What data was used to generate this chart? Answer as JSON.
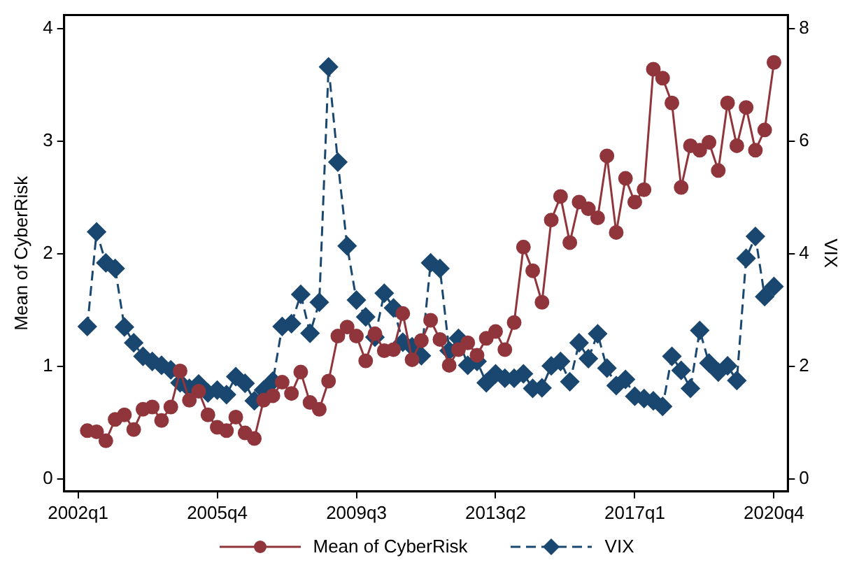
{
  "chart_data": {
    "type": "line",
    "ylabel": "Mean of CyberRisk",
    "y2label": "VIX",
    "categories": [
      "2002q1",
      null,
      null,
      null,
      null,
      null,
      null,
      null,
      null,
      null,
      null,
      null,
      null,
      null,
      null,
      "2005q4",
      null,
      null,
      null,
      null,
      null,
      null,
      null,
      null,
      null,
      null,
      null,
      null,
      null,
      null,
      "2009q3",
      null,
      null,
      null,
      null,
      null,
      null,
      null,
      null,
      null,
      null,
      null,
      null,
      null,
      null,
      "2013q2",
      null,
      null,
      null,
      null,
      null,
      null,
      null,
      null,
      null,
      null,
      null,
      null,
      null,
      null,
      "2017q1",
      null,
      null,
      null,
      null,
      null,
      null,
      null,
      null,
      null,
      null,
      null,
      null,
      null,
      null,
      "2020q4"
    ],
    "series": [
      {
        "name": "Mean of CyberRisk",
        "color": "#90353b",
        "marker": "circle",
        "line_style": "solid",
        "values": [
          null,
          0.43,
          0.42,
          0.34,
          0.53,
          0.57,
          0.44,
          0.62,
          0.64,
          0.52,
          0.64,
          0.96,
          0.7,
          0.78,
          0.57,
          0.46,
          0.43,
          0.55,
          0.41,
          0.36,
          0.7,
          0.74,
          0.86,
          0.76,
          0.95,
          0.68,
          0.62,
          0.87,
          1.27,
          1.35,
          1.27,
          1.05,
          1.29,
          1.14,
          1.15,
          1.47,
          1.06,
          1.23,
          1.41,
          1.24,
          1.01,
          1.15,
          1.21,
          1.1,
          1.25,
          1.31,
          1.15,
          1.39,
          2.06,
          1.85,
          1.57,
          2.3,
          2.51,
          2.1,
          2.46,
          2.4,
          2.32,
          2.87,
          2.19,
          2.67,
          2.46,
          2.57,
          3.64,
          3.56,
          3.34,
          2.59,
          2.96,
          2.92,
          2.99,
          2.74,
          3.34,
          2.96,
          3.3,
          2.92,
          3.1,
          3.7
        ]
      },
      {
        "name": "VIX",
        "color": "#1a476f",
        "marker": "diamond",
        "line_style": "dashed",
        "axis": "y2",
        "values": [
          null,
          2.71,
          4.39,
          3.84,
          3.74,
          2.7,
          2.42,
          2.18,
          2.09,
          2.02,
          1.94,
          1.71,
          1.61,
          1.69,
          1.53,
          1.58,
          1.5,
          1.82,
          1.7,
          1.39,
          1.58,
          1.74,
          2.71,
          2.76,
          3.28,
          2.59,
          3.14,
          7.32,
          5.63,
          4.14,
          3.18,
          2.88,
          2.52,
          3.3,
          3.04,
          2.43,
          2.35,
          2.19,
          3.84,
          3.74,
          2.28,
          2.5,
          2.02,
          2.09,
          1.71,
          1.87,
          1.79,
          1.79,
          1.87,
          1.61,
          1.62,
          2.01,
          2.09,
          1.73,
          2.42,
          2.14,
          2.58,
          1.97,
          1.66,
          1.77,
          1.47,
          1.43,
          1.39,
          1.29,
          2.18,
          1.93,
          1.61,
          2.64,
          2.06,
          1.9,
          2.01,
          1.75,
          3.92,
          4.31,
          3.24,
          3.42
        ]
      }
    ],
    "ylim": [
      -0.11,
      4.12
    ],
    "yticks": [
      0,
      1,
      2,
      3,
      4
    ],
    "y2lim": [
      -0.22,
      8.24
    ],
    "y2ticks": [
      0,
      2,
      4,
      6,
      8
    ],
    "grid": false,
    "legend": "bottom"
  }
}
